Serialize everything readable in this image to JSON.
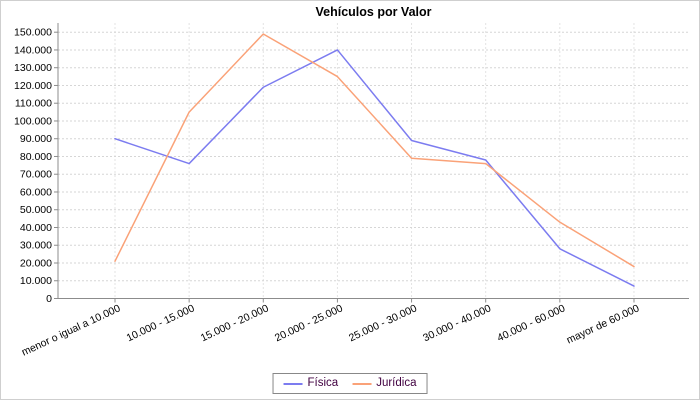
{
  "window": {
    "title": "Vehículos por Valor"
  },
  "chart_data": {
    "type": "line",
    "title": "Vehículos por Valor",
    "categories": [
      "menor o igual a 10.000",
      "10.000 - 15.000",
      "15.000 - 20.000",
      "20.000 - 25.000",
      "25.000 - 30.000",
      "30.000 - 40.000",
      "40.000 - 60.000",
      "mayor de 60.000"
    ],
    "series": [
      {
        "name": "Física",
        "color": "#7c7cf0",
        "values": [
          90000,
          76000,
          119000,
          140000,
          89000,
          78000,
          28000,
          7000
        ]
      },
      {
        "name": "Jurídica",
        "color": "#faa278",
        "values": [
          21000,
          105000,
          149000,
          125000,
          79000,
          76000,
          43000,
          18000
        ]
      }
    ],
    "xlabel": "",
    "ylabel": "",
    "ylim": [
      0,
      150000
    ],
    "y_ticks": {
      "values": [
        0,
        10000,
        20000,
        30000,
        40000,
        50000,
        60000,
        70000,
        80000,
        90000,
        100000,
        110000,
        120000,
        130000,
        140000,
        150000
      ],
      "labels": [
        "0",
        "10.000",
        "20.000",
        "30.000",
        "40.000",
        "50.000",
        "60.000",
        "70.000",
        "80.000",
        "90.000",
        "100.000",
        "110.000",
        "120.000",
        "130.000",
        "140.000",
        "150.000"
      ]
    },
    "grid": {
      "horizontal": "dashed",
      "vertical": "dashed-at-categories"
    },
    "legend_position": "bottom-center",
    "x_label_rotation_deg": -25
  },
  "legend": {
    "items": [
      {
        "label": "Física",
        "color": "#7c7cf0"
      },
      {
        "label": "Jurídica",
        "color": "#faa278"
      }
    ]
  },
  "style": {
    "series_blue": "#7c7cf0",
    "series_orange": "#faa278",
    "h_grid_color": "#d6d6d6",
    "v_grid_color": "#e3e3e3",
    "axis_color": "#8c8c8c",
    "tick_label_color": "#000000",
    "legend_text_color": "#400040",
    "legend_border_color": "#888888"
  }
}
